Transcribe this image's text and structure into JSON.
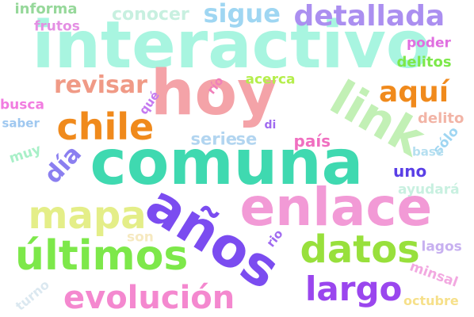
{
  "words": [
    {
      "text": "interactivo",
      "color": "#a8f5e0"
    },
    {
      "text": "comuna",
      "color": "#3fd9b0"
    },
    {
      "text": "hoy",
      "color": "#f4a3a8"
    },
    {
      "text": "años",
      "color": "#7b4cf0"
    },
    {
      "text": "enlace",
      "color": "#f29ad6"
    },
    {
      "text": "link",
      "color": "#c2f0b5"
    },
    {
      "text": "últimos",
      "color": "#7de84a"
    },
    {
      "text": "chile",
      "color": "#f08a1c"
    },
    {
      "text": "mapa",
      "color": "#e4ee88"
    },
    {
      "text": "datos",
      "color": "#98e03c"
    },
    {
      "text": "evolución",
      "color": "#f488cf"
    },
    {
      "text": "largo",
      "color": "#9a46ee"
    },
    {
      "text": "detallada",
      "color": "#ab8ff0"
    },
    {
      "text": "sigue",
      "color": "#9fd6f2"
    },
    {
      "text": "aquí",
      "color": "#f08a1c"
    },
    {
      "text": "revisar",
      "color": "#f09a86"
    },
    {
      "text": "día",
      "color": "#8b7ff0"
    },
    {
      "text": "conocer",
      "color": "#c8f0e0"
    },
    {
      "text": "informa",
      "color": "#96d89a"
    },
    {
      "text": "frutos",
      "color": "#e48fe3"
    },
    {
      "text": "acerca",
      "color": "#b5ee4c"
    },
    {
      "text": "serie",
      "color": "#b2d5f0"
    },
    {
      "text": "se",
      "color": "#b2d5f0"
    },
    {
      "text": "país",
      "color": "#f06fc0"
    },
    {
      "text": "delito",
      "color": "#f2b4a6"
    },
    {
      "text": "delitos",
      "color": "#7de84a"
    },
    {
      "text": "poder",
      "color": "#e06fe0"
    },
    {
      "text": "busca",
      "color": "#f17ce0"
    },
    {
      "text": "saber",
      "color": "#9fc8f0"
    },
    {
      "text": "muy",
      "color": "#a8f0c8"
    },
    {
      "text": "qué",
      "color": "#c57af0"
    },
    {
      "text": "río",
      "color": "#f07fba"
    },
    {
      "text": "di",
      "color": "#a06af0"
    },
    {
      "text": "uno",
      "color": "#5a3fe6"
    },
    {
      "text": "sólo",
      "color": "#9fd6f2"
    },
    {
      "text": "base",
      "color": "#b5dff0"
    },
    {
      "text": "ayudará",
      "color": "#c8f0e0"
    },
    {
      "text": "son",
      "color": "#f6e9c0"
    },
    {
      "text": "rio",
      "color": "#a06af0"
    },
    {
      "text": "lagos",
      "color": "#c7b0f0"
    },
    {
      "text": "minsal",
      "color": "#f2a8e0"
    },
    {
      "text": "turno",
      "color": "#dbe8f0"
    },
    {
      "text": "octubre",
      "color": "#f6e08a"
    }
  ]
}
